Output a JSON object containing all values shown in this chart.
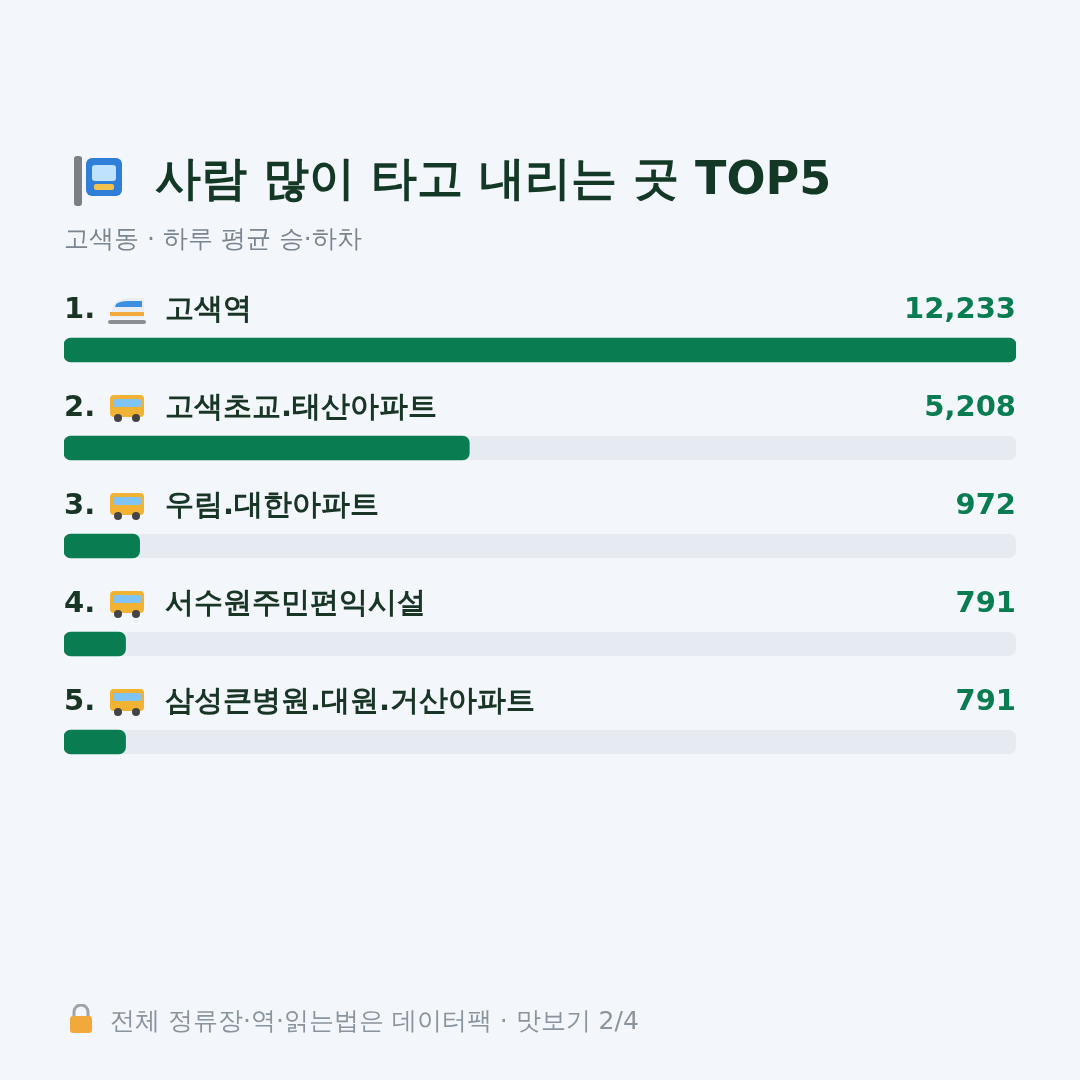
{
  "chart_data": {
    "type": "bar",
    "orientation": "horizontal",
    "title": "사람 많이 타고 내리는 곳 TOP5",
    "subtitle": "고색동 · 하루 평균 승·하차",
    "categories": [
      "1. 고색역",
      "2. 고색초교.태산아파트",
      "3. 우림.대한아파트",
      "4. 서수원주민편익시설",
      "5. 삼성큰병원.대원.거산아파트"
    ],
    "values": [
      12233,
      5208,
      972,
      791,
      791
    ],
    "value_labels": [
      "12,233",
      "5,208",
      "972",
      "791",
      "791"
    ],
    "color": "#0a7c52",
    "xlim": [
      0,
      12233
    ],
    "tick_labels": false,
    "legend": false,
    "annotations": [
      "전체 정류장·역·읽는법은 데이터팩 · 맛보기 2/4"
    ]
  }
}
